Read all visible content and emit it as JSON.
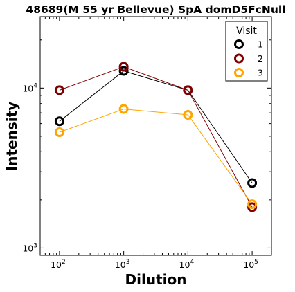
{
  "chart_data": {
    "type": "line",
    "title": "48689(M 55 yr Bellevue) SpA domD5FcNull",
    "xlabel": "Dilution",
    "ylabel": "Intensity",
    "x_scale": "log",
    "y_scale": "log",
    "xlim": [
      50,
      200000
    ],
    "ylim": [
      900,
      28000
    ],
    "x_ticks": [
      {
        "value": 100,
        "base": "10",
        "exp": "2"
      },
      {
        "value": 1000,
        "base": "10",
        "exp": "3"
      },
      {
        "value": 10000,
        "base": "10",
        "exp": "4"
      },
      {
        "value": 100000,
        "base": "10",
        "exp": "5"
      }
    ],
    "y_ticks": [
      {
        "value": 1000,
        "base": "10",
        "exp": "3"
      },
      {
        "value": 10000,
        "base": "10",
        "exp": "4"
      }
    ],
    "grid": false,
    "legend": {
      "title": "Visit",
      "placement": "top-right"
    },
    "x": [
      100,
      1000,
      10000,
      100000
    ],
    "series": [
      {
        "name": "1",
        "color": "#000000",
        "values": [
          6200,
          12800,
          9700,
          2550
        ]
      },
      {
        "name": "2",
        "color": "#800000",
        "values": [
          9700,
          13600,
          9700,
          1800
        ]
      },
      {
        "name": "3",
        "color": "#FFA500",
        "values": [
          5300,
          7400,
          6800,
          1880
        ]
      }
    ]
  }
}
